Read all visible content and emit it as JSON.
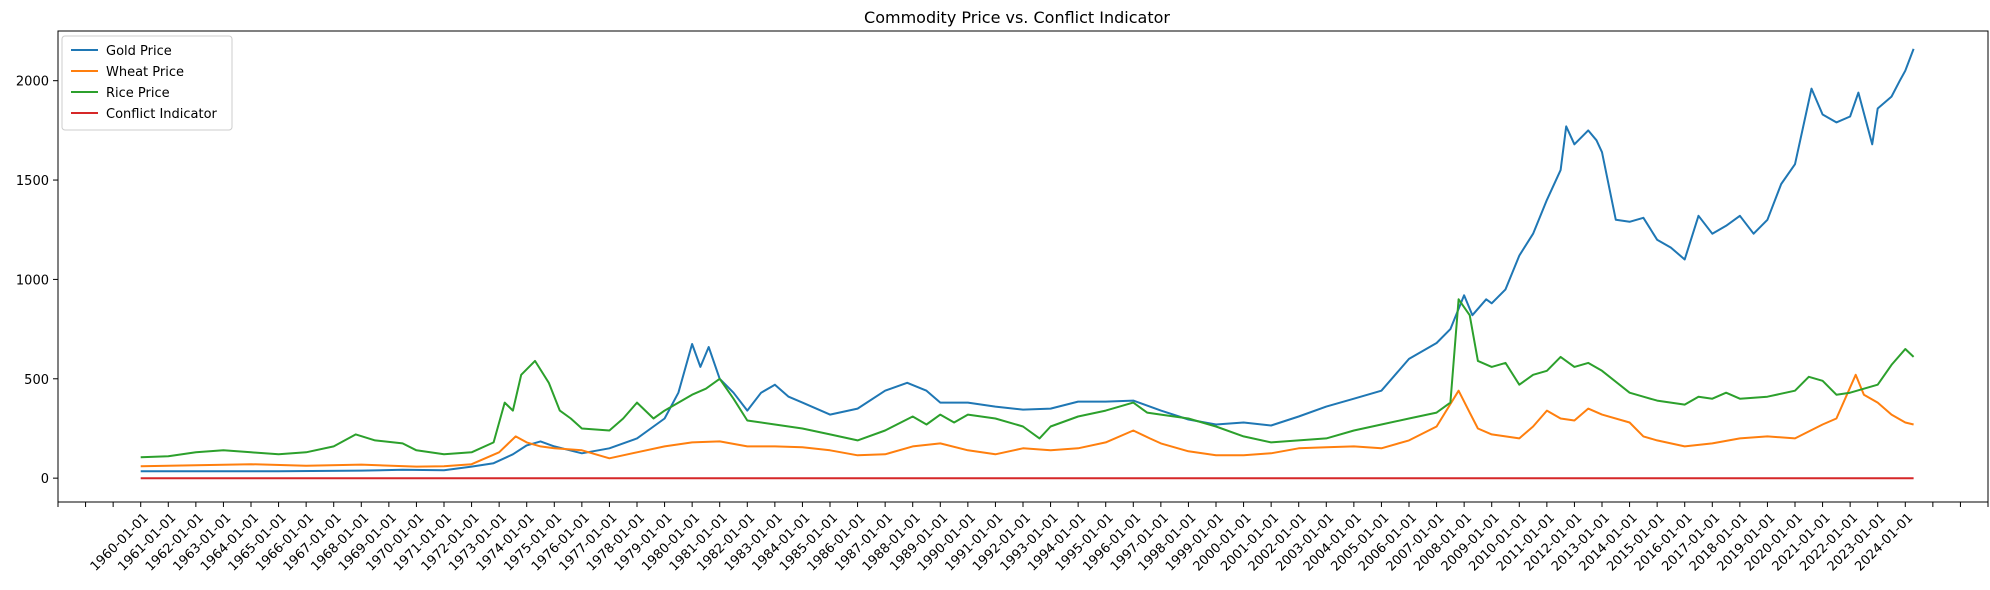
{
  "chart_data": {
    "type": "line",
    "title": "Commodity Price vs. Conflict Indicator",
    "xlabel": "",
    "ylabel": "",
    "ylim": [
      -120,
      2250
    ],
    "yticks": [
      0,
      500,
      1000,
      1500,
      2000
    ],
    "xlim": [
      1957.0,
      2027.0
    ],
    "x_tick_labels": [
      "1960-01-01",
      "1961-01-01",
      "1962-01-01",
      "1963-01-01",
      "1964-01-01",
      "1965-01-01",
      "1966-01-01",
      "1967-01-01",
      "1968-01-01",
      "1969-01-01",
      "1970-01-01",
      "1971-01-01",
      "1972-01-01",
      "1973-01-01",
      "1974-01-01",
      "1975-01-01",
      "1976-01-01",
      "1977-01-01",
      "1978-01-01",
      "1979-01-01",
      "1980-01-01",
      "1981-01-01",
      "1982-01-01",
      "1983-01-01",
      "1984-01-01",
      "1985-01-01",
      "1986-01-01",
      "1987-01-01",
      "1988-01-01",
      "1989-01-01",
      "1990-01-01",
      "1991-01-01",
      "1992-01-01",
      "1993-01-01",
      "1994-01-01",
      "1995-01-01",
      "1996-01-01",
      "1997-01-01",
      "1998-01-01",
      "1999-01-01",
      "2000-01-01",
      "2001-01-01",
      "2002-01-01",
      "2003-01-01",
      "2004-01-01",
      "2005-01-01",
      "2006-01-01",
      "2007-01-01",
      "2008-01-01",
      "2009-01-01",
      "2010-01-01",
      "2011-01-01",
      "2012-01-01",
      "2013-01-01",
      "2014-01-01",
      "2015-01-01",
      "2016-01-01",
      "2017-01-01",
      "2018-01-01",
      "2019-01-01",
      "2020-01-01",
      "2021-01-01",
      "2022-01-01",
      "2023-01-01",
      "2024-01-01"
    ],
    "grid": false,
    "legend_position": "top-left",
    "series": [
      {
        "name": "Gold Price",
        "color": "#1f77b4",
        "points": [
          [
            1960.0,
            35
          ],
          [
            1965.0,
            35
          ],
          [
            1968.0,
            38
          ],
          [
            1969.5,
            42
          ],
          [
            1971.0,
            40
          ],
          [
            1972.0,
            58
          ],
          [
            1972.8,
            75
          ],
          [
            1973.5,
            120
          ],
          [
            1974.0,
            165
          ],
          [
            1974.5,
            185
          ],
          [
            1975.0,
            160
          ],
          [
            1976.0,
            125
          ],
          [
            1977.0,
            150
          ],
          [
            1978.0,
            200
          ],
          [
            1979.0,
            300
          ],
          [
            1979.5,
            430
          ],
          [
            1980.0,
            675
          ],
          [
            1980.3,
            560
          ],
          [
            1980.6,
            660
          ],
          [
            1981.0,
            500
          ],
          [
            1981.5,
            430
          ],
          [
            1982.0,
            340
          ],
          [
            1982.5,
            430
          ],
          [
            1983.0,
            470
          ],
          [
            1983.5,
            410
          ],
          [
            1984.0,
            380
          ],
          [
            1985.0,
            320
          ],
          [
            1986.0,
            350
          ],
          [
            1987.0,
            440
          ],
          [
            1987.8,
            480
          ],
          [
            1988.5,
            440
          ],
          [
            1989.0,
            380
          ],
          [
            1990.0,
            380
          ],
          [
            1991.0,
            360
          ],
          [
            1992.0,
            345
          ],
          [
            1993.0,
            350
          ],
          [
            1994.0,
            385
          ],
          [
            1995.0,
            385
          ],
          [
            1996.0,
            390
          ],
          [
            1997.0,
            340
          ],
          [
            1998.0,
            295
          ],
          [
            1999.0,
            270
          ],
          [
            2000.0,
            280
          ],
          [
            2001.0,
            265
          ],
          [
            2002.0,
            310
          ],
          [
            2003.0,
            360
          ],
          [
            2004.0,
            400
          ],
          [
            2005.0,
            440
          ],
          [
            2006.0,
            600
          ],
          [
            2007.0,
            680
          ],
          [
            2007.5,
            750
          ],
          [
            2008.0,
            920
          ],
          [
            2008.3,
            820
          ],
          [
            2008.8,
            900
          ],
          [
            2009.0,
            880
          ],
          [
            2009.5,
            950
          ],
          [
            2010.0,
            1120
          ],
          [
            2010.5,
            1230
          ],
          [
            2011.0,
            1400
          ],
          [
            2011.5,
            1550
          ],
          [
            2011.7,
            1770
          ],
          [
            2012.0,
            1680
          ],
          [
            2012.5,
            1750
          ],
          [
            2012.8,
            1700
          ],
          [
            2013.0,
            1640
          ],
          [
            2013.5,
            1300
          ],
          [
            2014.0,
            1290
          ],
          [
            2014.5,
            1310
          ],
          [
            2015.0,
            1200
          ],
          [
            2015.5,
            1160
          ],
          [
            2016.0,
            1100
          ],
          [
            2016.5,
            1320
          ],
          [
            2017.0,
            1230
          ],
          [
            2017.5,
            1270
          ],
          [
            2018.0,
            1320
          ],
          [
            2018.5,
            1230
          ],
          [
            2019.0,
            1300
          ],
          [
            2019.5,
            1480
          ],
          [
            2020.0,
            1580
          ],
          [
            2020.6,
            1960
          ],
          [
            2021.0,
            1830
          ],
          [
            2021.5,
            1790
          ],
          [
            2022.0,
            1820
          ],
          [
            2022.3,
            1940
          ],
          [
            2022.8,
            1680
          ],
          [
            2023.0,
            1860
          ],
          [
            2023.5,
            1920
          ],
          [
            2023.8,
            2000
          ],
          [
            2024.0,
            2050
          ],
          [
            2024.3,
            2160
          ]
        ]
      },
      {
        "name": "Wheat Price",
        "color": "#ff7f0e",
        "points": [
          [
            1960.0,
            60
          ],
          [
            1962.0,
            65
          ],
          [
            1964.0,
            70
          ],
          [
            1966.0,
            62
          ],
          [
            1968.0,
            68
          ],
          [
            1970.0,
            58
          ],
          [
            1971.0,
            60
          ],
          [
            1972.0,
            70
          ],
          [
            1973.0,
            130
          ],
          [
            1973.6,
            210
          ],
          [
            1974.0,
            180
          ],
          [
            1974.5,
            160
          ],
          [
            1975.0,
            150
          ],
          [
            1976.0,
            140
          ],
          [
            1977.0,
            100
          ],
          [
            1978.0,
            130
          ],
          [
            1979.0,
            160
          ],
          [
            1980.0,
            180
          ],
          [
            1981.0,
            185
          ],
          [
            1982.0,
            160
          ],
          [
            1983.0,
            160
          ],
          [
            1984.0,
            155
          ],
          [
            1985.0,
            140
          ],
          [
            1986.0,
            115
          ],
          [
            1987.0,
            120
          ],
          [
            1988.0,
            160
          ],
          [
            1989.0,
            175
          ],
          [
            1990.0,
            140
          ],
          [
            1991.0,
            120
          ],
          [
            1992.0,
            150
          ],
          [
            1993.0,
            140
          ],
          [
            1994.0,
            150
          ],
          [
            1995.0,
            180
          ],
          [
            1996.0,
            240
          ],
          [
            1996.6,
            200
          ],
          [
            1997.0,
            175
          ],
          [
            1998.0,
            135
          ],
          [
            1999.0,
            115
          ],
          [
            2000.0,
            115
          ],
          [
            2001.0,
            125
          ],
          [
            2002.0,
            150
          ],
          [
            2003.0,
            155
          ],
          [
            2004.0,
            160
          ],
          [
            2005.0,
            150
          ],
          [
            2006.0,
            190
          ],
          [
            2007.0,
            260
          ],
          [
            2007.8,
            440
          ],
          [
            2008.2,
            330
          ],
          [
            2008.5,
            250
          ],
          [
            2009.0,
            220
          ],
          [
            2010.0,
            200
          ],
          [
            2010.5,
            260
          ],
          [
            2011.0,
            340
          ],
          [
            2011.5,
            300
          ],
          [
            2012.0,
            290
          ],
          [
            2012.5,
            350
          ],
          [
            2013.0,
            320
          ],
          [
            2014.0,
            280
          ],
          [
            2014.5,
            210
          ],
          [
            2015.0,
            190
          ],
          [
            2016.0,
            160
          ],
          [
            2017.0,
            175
          ],
          [
            2018.0,
            200
          ],
          [
            2019.0,
            210
          ],
          [
            2020.0,
            200
          ],
          [
            2021.0,
            270
          ],
          [
            2021.5,
            300
          ],
          [
            2022.2,
            520
          ],
          [
            2022.5,
            420
          ],
          [
            2023.0,
            380
          ],
          [
            2023.5,
            320
          ],
          [
            2024.0,
            280
          ],
          [
            2024.3,
            270
          ]
        ]
      },
      {
        "name": "Rice Price",
        "color": "#2ca02c",
        "points": [
          [
            1960.0,
            105
          ],
          [
            1961.0,
            110
          ],
          [
            1962.0,
            130
          ],
          [
            1963.0,
            140
          ],
          [
            1964.0,
            130
          ],
          [
            1965.0,
            120
          ],
          [
            1966.0,
            130
          ],
          [
            1967.0,
            160
          ],
          [
            1967.8,
            220
          ],
          [
            1968.5,
            190
          ],
          [
            1969.5,
            175
          ],
          [
            1970.0,
            140
          ],
          [
            1971.0,
            120
          ],
          [
            1972.0,
            130
          ],
          [
            1972.8,
            180
          ],
          [
            1973.2,
            380
          ],
          [
            1973.5,
            340
          ],
          [
            1973.8,
            520
          ],
          [
            1974.3,
            590
          ],
          [
            1974.8,
            480
          ],
          [
            1975.2,
            340
          ],
          [
            1975.6,
            300
          ],
          [
            1976.0,
            250
          ],
          [
            1977.0,
            240
          ],
          [
            1977.5,
            300
          ],
          [
            1978.0,
            380
          ],
          [
            1978.6,
            300
          ],
          [
            1979.0,
            340
          ],
          [
            1980.0,
            420
          ],
          [
            1980.5,
            450
          ],
          [
            1981.0,
            500
          ],
          [
            1981.5,
            400
          ],
          [
            1982.0,
            290
          ],
          [
            1983.0,
            270
          ],
          [
            1984.0,
            250
          ],
          [
            1985.0,
            220
          ],
          [
            1986.0,
            190
          ],
          [
            1987.0,
            240
          ],
          [
            1988.0,
            310
          ],
          [
            1988.5,
            270
          ],
          [
            1989.0,
            320
          ],
          [
            1989.5,
            280
          ],
          [
            1990.0,
            320
          ],
          [
            1991.0,
            300
          ],
          [
            1992.0,
            260
          ],
          [
            1992.6,
            200
          ],
          [
            1993.0,
            260
          ],
          [
            1994.0,
            310
          ],
          [
            1995.0,
            340
          ],
          [
            1996.0,
            380
          ],
          [
            1996.5,
            330
          ],
          [
            1997.0,
            320
          ],
          [
            1998.0,
            300
          ],
          [
            1999.0,
            260
          ],
          [
            2000.0,
            210
          ],
          [
            2001.0,
            180
          ],
          [
            2002.0,
            190
          ],
          [
            2003.0,
            200
          ],
          [
            2004.0,
            240
          ],
          [
            2005.0,
            270
          ],
          [
            2006.0,
            300
          ],
          [
            2007.0,
            330
          ],
          [
            2007.5,
            380
          ],
          [
            2007.8,
            900
          ],
          [
            2008.2,
            820
          ],
          [
            2008.5,
            590
          ],
          [
            2009.0,
            560
          ],
          [
            2009.5,
            580
          ],
          [
            2010.0,
            470
          ],
          [
            2010.5,
            520
          ],
          [
            2011.0,
            540
          ],
          [
            2011.5,
            610
          ],
          [
            2012.0,
            560
          ],
          [
            2012.5,
            580
          ],
          [
            2013.0,
            540
          ],
          [
            2014.0,
            430
          ],
          [
            2014.5,
            410
          ],
          [
            2015.0,
            390
          ],
          [
            2016.0,
            370
          ],
          [
            2016.5,
            410
          ],
          [
            2017.0,
            400
          ],
          [
            2017.5,
            430
          ],
          [
            2018.0,
            400
          ],
          [
            2019.0,
            410
          ],
          [
            2020.0,
            440
          ],
          [
            2020.5,
            510
          ],
          [
            2021.0,
            490
          ],
          [
            2021.5,
            420
          ],
          [
            2022.0,
            430
          ],
          [
            2022.5,
            450
          ],
          [
            2023.0,
            470
          ],
          [
            2023.5,
            570
          ],
          [
            2024.0,
            650
          ],
          [
            2024.3,
            610
          ]
        ]
      },
      {
        "name": "Conflict Indicator",
        "color": "#d62728",
        "points": [
          [
            1960.0,
            0
          ],
          [
            2024.3,
            0
          ]
        ]
      }
    ]
  }
}
